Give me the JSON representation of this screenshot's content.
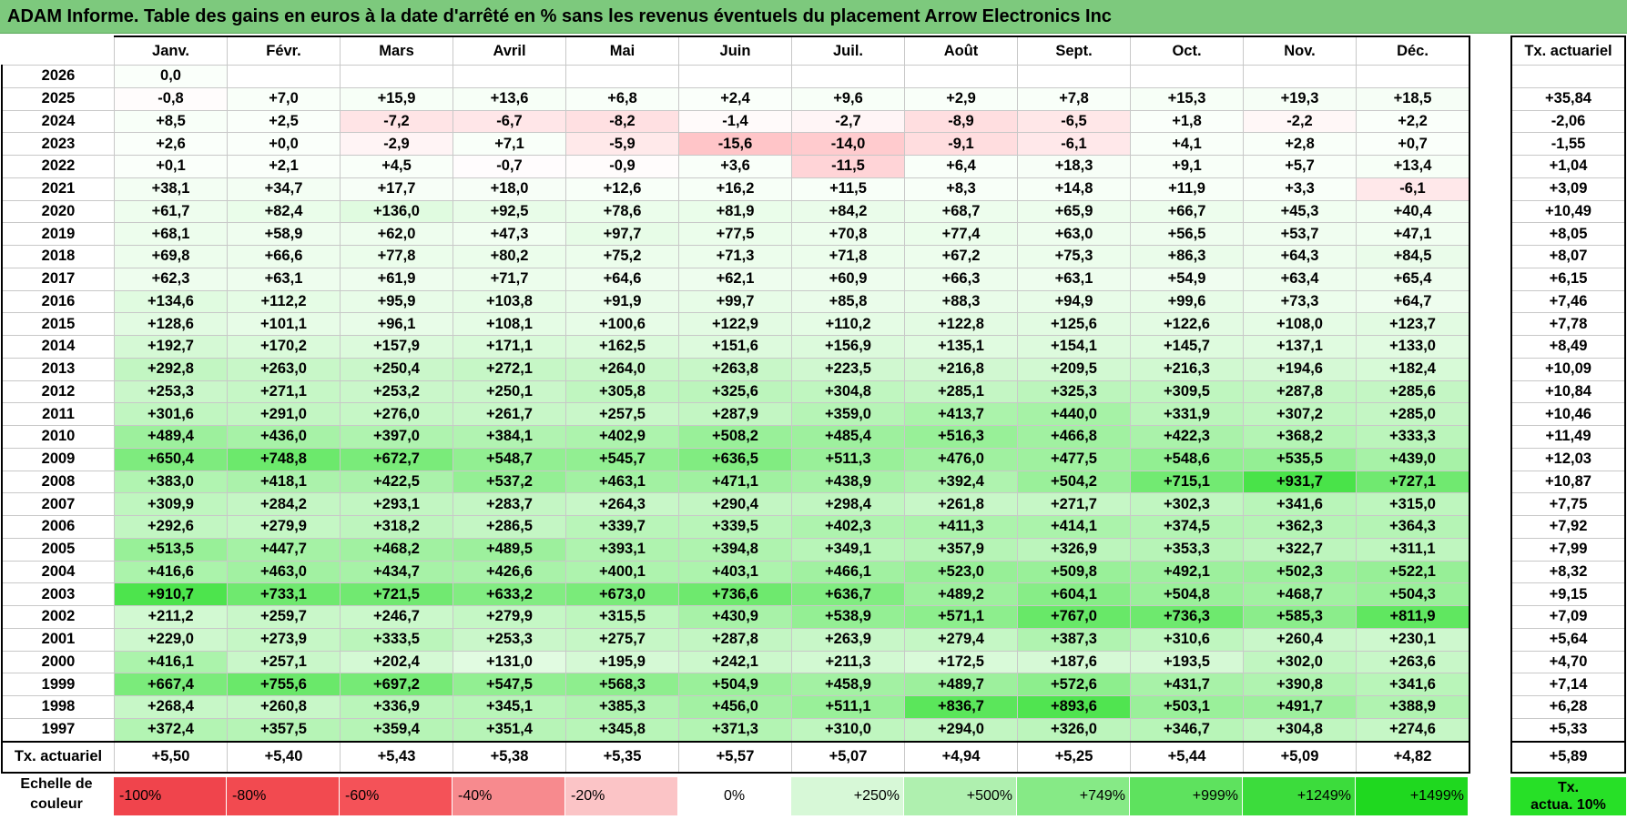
{
  "title": "ADAM Informe. Table des gains en euros à la date d'arrêté en % sans les revenus éventuels du placement Arrow Electronics Inc",
  "months": [
    "Janv.",
    "Févr.",
    "Mars",
    "Avril",
    "Mai",
    "Juin",
    "Juil.",
    "Août",
    "Sept.",
    "Oct.",
    "Nov.",
    "Déc."
  ],
  "rate_header": "Tx. actuariel",
  "rows": [
    {
      "year": "2026",
      "values": [
        "0,0",
        "",
        "",
        "",
        "",
        "",
        "",
        "",
        "",
        "",
        "",
        ""
      ],
      "rate": ""
    },
    {
      "year": "2025",
      "values": [
        "-0,8",
        "+7,0",
        "+15,9",
        "+13,6",
        "+6,8",
        "+2,4",
        "+9,6",
        "+2,9",
        "+7,8",
        "+15,3",
        "+19,3",
        "+18,5"
      ],
      "rate": "+35,84"
    },
    {
      "year": "2024",
      "values": [
        "+8,5",
        "+2,5",
        "-7,2",
        "-6,7",
        "-8,2",
        "-1,4",
        "-2,7",
        "-8,9",
        "-6,5",
        "+1,8",
        "-2,2",
        "+2,2"
      ],
      "rate": "-2,06"
    },
    {
      "year": "2023",
      "values": [
        "+2,6",
        "+0,0",
        "-2,9",
        "+7,1",
        "-5,9",
        "-15,6",
        "-14,0",
        "-9,1",
        "-6,1",
        "+4,1",
        "+2,8",
        "+0,7"
      ],
      "rate": "-1,55"
    },
    {
      "year": "2022",
      "values": [
        "+0,1",
        "+2,1",
        "+4,5",
        "-0,7",
        "-0,9",
        "+3,6",
        "-11,5",
        "+6,4",
        "+18,3",
        "+9,1",
        "+5,7",
        "+13,4"
      ],
      "rate": "+1,04"
    },
    {
      "year": "2021",
      "values": [
        "+38,1",
        "+34,7",
        "+17,7",
        "+18,0",
        "+12,6",
        "+16,2",
        "+11,5",
        "+8,3",
        "+14,8",
        "+11,9",
        "+3,3",
        "-6,1"
      ],
      "rate": "+3,09"
    },
    {
      "year": "2020",
      "values": [
        "+61,7",
        "+82,4",
        "+136,0",
        "+92,5",
        "+78,6",
        "+81,9",
        "+84,2",
        "+68,7",
        "+65,9",
        "+66,7",
        "+45,3",
        "+40,4"
      ],
      "rate": "+10,49"
    },
    {
      "year": "2019",
      "values": [
        "+68,1",
        "+58,9",
        "+62,0",
        "+47,3",
        "+97,7",
        "+77,5",
        "+70,8",
        "+77,4",
        "+63,0",
        "+56,5",
        "+53,7",
        "+47,1"
      ],
      "rate": "+8,05"
    },
    {
      "year": "2018",
      "values": [
        "+69,8",
        "+66,6",
        "+77,8",
        "+80,2",
        "+75,2",
        "+71,3",
        "+71,8",
        "+67,2",
        "+75,3",
        "+86,3",
        "+64,3",
        "+84,5"
      ],
      "rate": "+8,07"
    },
    {
      "year": "2017",
      "values": [
        "+62,3",
        "+63,1",
        "+61,9",
        "+71,7",
        "+64,6",
        "+62,1",
        "+60,9",
        "+66,3",
        "+63,1",
        "+54,9",
        "+63,4",
        "+65,4"
      ],
      "rate": "+6,15"
    },
    {
      "year": "2016",
      "values": [
        "+134,6",
        "+112,2",
        "+95,9",
        "+103,8",
        "+91,9",
        "+99,7",
        "+85,8",
        "+88,3",
        "+94,9",
        "+99,6",
        "+73,3",
        "+64,7"
      ],
      "rate": "+7,46"
    },
    {
      "year": "2015",
      "values": [
        "+128,6",
        "+101,1",
        "+96,1",
        "+108,1",
        "+100,6",
        "+122,9",
        "+110,2",
        "+122,8",
        "+125,6",
        "+122,6",
        "+108,0",
        "+123,7"
      ],
      "rate": "+7,78"
    },
    {
      "year": "2014",
      "values": [
        "+192,7",
        "+170,2",
        "+157,9",
        "+171,1",
        "+162,5",
        "+151,6",
        "+156,9",
        "+135,1",
        "+154,1",
        "+145,7",
        "+137,1",
        "+133,0"
      ],
      "rate": "+8,49"
    },
    {
      "year": "2013",
      "values": [
        "+292,8",
        "+263,0",
        "+250,4",
        "+272,1",
        "+264,0",
        "+263,8",
        "+223,5",
        "+216,8",
        "+209,5",
        "+216,3",
        "+194,6",
        "+182,4"
      ],
      "rate": "+10,09"
    },
    {
      "year": "2012",
      "values": [
        "+253,3",
        "+271,1",
        "+253,2",
        "+250,1",
        "+305,8",
        "+325,6",
        "+304,8",
        "+285,1",
        "+325,3",
        "+309,5",
        "+287,8",
        "+285,6"
      ],
      "rate": "+10,84"
    },
    {
      "year": "2011",
      "values": [
        "+301,6",
        "+291,0",
        "+276,0",
        "+261,7",
        "+257,5",
        "+287,9",
        "+359,0",
        "+413,7",
        "+440,0",
        "+331,9",
        "+307,2",
        "+285,0"
      ],
      "rate": "+10,46"
    },
    {
      "year": "2010",
      "values": [
        "+489,4",
        "+436,0",
        "+397,0",
        "+384,1",
        "+402,9",
        "+508,2",
        "+485,4",
        "+516,3",
        "+466,8",
        "+422,3",
        "+368,2",
        "+333,3"
      ],
      "rate": "+11,49"
    },
    {
      "year": "2009",
      "values": [
        "+650,4",
        "+748,8",
        "+672,7",
        "+548,7",
        "+545,7",
        "+636,5",
        "+511,3",
        "+476,0",
        "+477,5",
        "+548,6",
        "+535,5",
        "+439,0"
      ],
      "rate": "+12,03"
    },
    {
      "year": "2008",
      "values": [
        "+383,0",
        "+418,1",
        "+422,5",
        "+537,2",
        "+463,1",
        "+471,1",
        "+438,9",
        "+392,4",
        "+504,2",
        "+715,1",
        "+931,7",
        "+727,1"
      ],
      "rate": "+10,87"
    },
    {
      "year": "2007",
      "values": [
        "+309,9",
        "+284,2",
        "+293,1",
        "+283,7",
        "+264,3",
        "+290,4",
        "+298,4",
        "+261,8",
        "+271,7",
        "+302,3",
        "+341,6",
        "+315,0"
      ],
      "rate": "+7,75"
    },
    {
      "year": "2006",
      "values": [
        "+292,6",
        "+279,9",
        "+318,2",
        "+286,5",
        "+339,7",
        "+339,5",
        "+402,3",
        "+411,3",
        "+414,1",
        "+374,5",
        "+362,3",
        "+364,3"
      ],
      "rate": "+7,92"
    },
    {
      "year": "2005",
      "values": [
        "+513,5",
        "+447,7",
        "+468,2",
        "+489,5",
        "+393,1",
        "+394,8",
        "+349,1",
        "+357,9",
        "+326,9",
        "+353,3",
        "+322,7",
        "+311,1"
      ],
      "rate": "+7,99"
    },
    {
      "year": "2004",
      "values": [
        "+416,6",
        "+463,0",
        "+434,7",
        "+426,6",
        "+400,1",
        "+403,1",
        "+466,1",
        "+523,0",
        "+509,8",
        "+492,1",
        "+502,3",
        "+522,1"
      ],
      "rate": "+8,32"
    },
    {
      "year": "2003",
      "values": [
        "+910,7",
        "+733,1",
        "+721,5",
        "+633,2",
        "+673,0",
        "+736,6",
        "+636,7",
        "+489,2",
        "+604,1",
        "+504,8",
        "+468,7",
        "+504,3"
      ],
      "rate": "+9,15"
    },
    {
      "year": "2002",
      "values": [
        "+211,2",
        "+259,7",
        "+246,7",
        "+279,9",
        "+315,5",
        "+430,9",
        "+538,9",
        "+571,1",
        "+767,0",
        "+736,3",
        "+585,3",
        "+811,9"
      ],
      "rate": "+7,09"
    },
    {
      "year": "2001",
      "values": [
        "+229,0",
        "+273,9",
        "+333,5",
        "+253,3",
        "+275,7",
        "+287,8",
        "+263,9",
        "+279,4",
        "+387,3",
        "+310,6",
        "+260,4",
        "+230,1"
      ],
      "rate": "+5,64"
    },
    {
      "year": "2000",
      "values": [
        "+416,1",
        "+257,1",
        "+202,4",
        "+131,0",
        "+195,9",
        "+242,1",
        "+211,3",
        "+172,5",
        "+187,6",
        "+193,5",
        "+302,0",
        "+263,6"
      ],
      "rate": "+4,70"
    },
    {
      "year": "1999",
      "values": [
        "+667,4",
        "+755,6",
        "+697,2",
        "+547,5",
        "+568,3",
        "+504,9",
        "+458,9",
        "+489,7",
        "+572,6",
        "+431,7",
        "+390,8",
        "+341,6"
      ],
      "rate": "+7,14"
    },
    {
      "year": "1998",
      "values": [
        "+268,4",
        "+260,8",
        "+336,9",
        "+345,1",
        "+385,3",
        "+456,0",
        "+511,1",
        "+836,7",
        "+893,6",
        "+503,1",
        "+491,7",
        "+388,9"
      ],
      "rate": "+6,28"
    },
    {
      "year": "1997",
      "values": [
        "+372,4",
        "+357,5",
        "+359,4",
        "+351,4",
        "+345,8",
        "+371,3",
        "+310,0",
        "+294,0",
        "+326,0",
        "+346,7",
        "+304,8",
        "+274,6"
      ],
      "rate": "+5,33"
    }
  ],
  "total_row": {
    "label": "Tx. actuariel",
    "values": [
      "+5,50",
      "+5,40",
      "+5,43",
      "+5,38",
      "+5,35",
      "+5,57",
      "+5,07",
      "+4,94",
      "+5,25",
      "+5,44",
      "+5,09",
      "+4,82"
    ],
    "rate": "+5,89"
  },
  "legend": {
    "label_line1": "Echelle de",
    "label_line2": "couleur",
    "cells": [
      {
        "text": "-100%",
        "color": "#f0444c",
        "kind": "neg"
      },
      {
        "text": "-80%",
        "color": "#f24a50",
        "kind": "neg"
      },
      {
        "text": "-60%",
        "color": "#f45258",
        "kind": "neg"
      },
      {
        "text": "-40%",
        "color": "#f78a8e",
        "kind": "neg"
      },
      {
        "text": "-20%",
        "color": "#fbc4c6",
        "kind": "neg"
      },
      {
        "text": "0%",
        "color": "#ffffff",
        "kind": "zero"
      },
      {
        "text": "+250%",
        "color": "#d7f8d7",
        "kind": "pos"
      },
      {
        "text": "+500%",
        "color": "#aff0af",
        "kind": "pos"
      },
      {
        "text": "+749%",
        "color": "#86ea86",
        "kind": "pos"
      },
      {
        "text": "+999%",
        "color": "#5ee25e",
        "kind": "pos"
      },
      {
        "text": "+1249%",
        "color": "#3cdc3c",
        "kind": "pos"
      },
      {
        "text": "+1499%",
        "color": "#1fd81f",
        "kind": "pos"
      }
    ],
    "rate_line1": "Tx.",
    "rate_line2": "actua. 10%",
    "rate_color": "#27e027"
  }
}
